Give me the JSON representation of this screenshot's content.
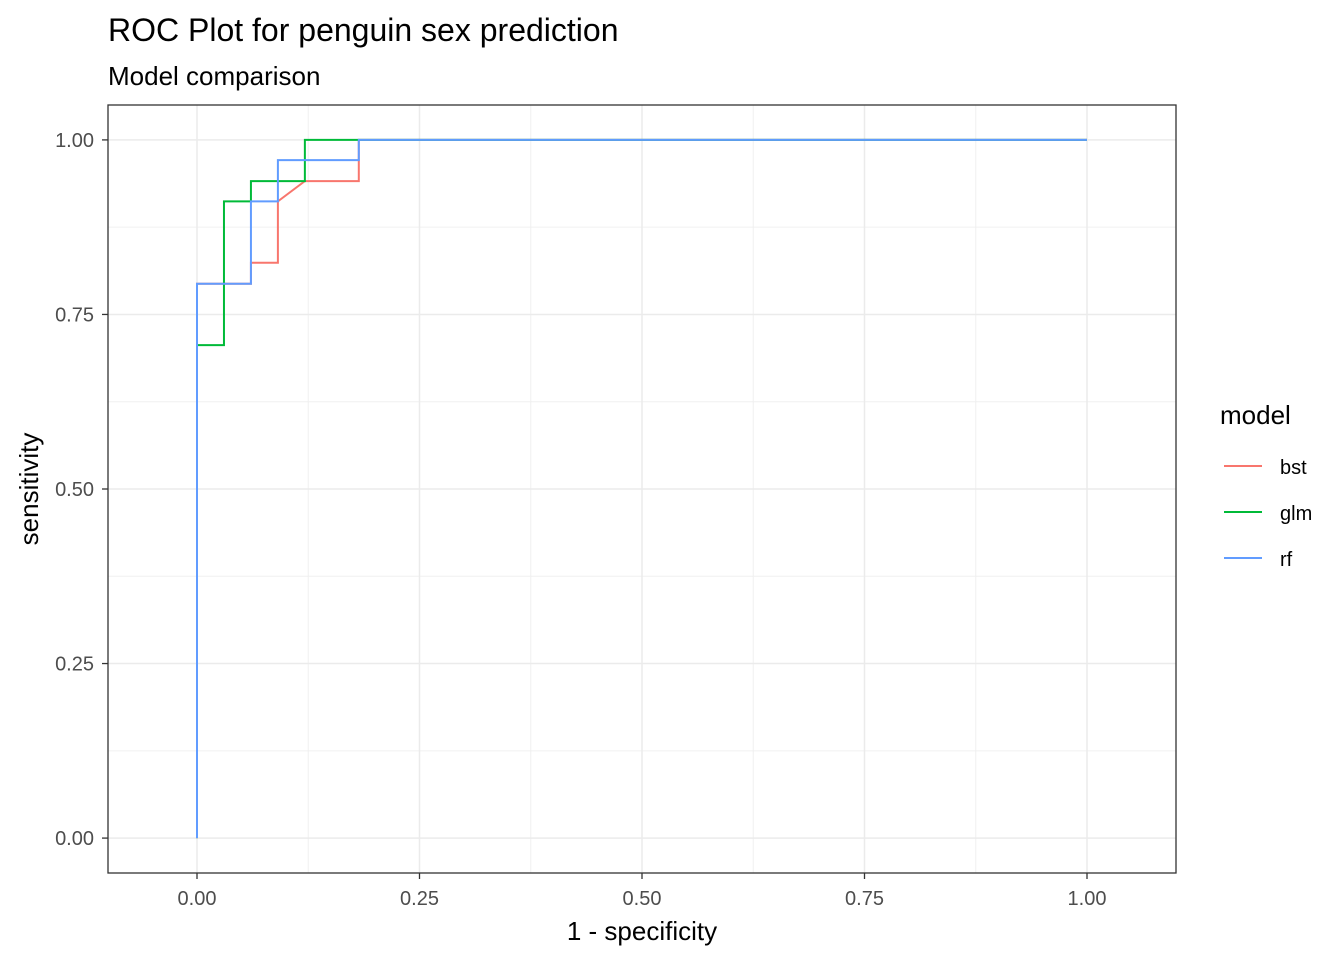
{
  "chart_data": {
    "type": "line",
    "title": "ROC Plot for penguin sex prediction",
    "subtitle": "Model comparison",
    "xlabel": "1 - specificity",
    "ylabel": "sensitivity",
    "xlim": [
      -0.1,
      1.1
    ],
    "ylim": [
      -0.05,
      1.05
    ],
    "x_ticks": [
      0,
      0.25,
      0.5,
      0.75,
      1.0
    ],
    "x_tick_labels": [
      "0.00",
      "0.25",
      "0.50",
      "0.75",
      "1.00"
    ],
    "y_ticks": [
      0,
      0.25,
      0.5,
      0.75,
      1.0
    ],
    "y_tick_labels": [
      "0.00",
      "0.25",
      "0.50",
      "0.75",
      "1.00"
    ],
    "grid": true,
    "legend": {
      "title": "model",
      "position": "right"
    },
    "series": [
      {
        "name": "bst",
        "color": "#F8766D",
        "step": true,
        "x": [
          0,
          0,
          0.0606,
          0.0606,
          0.0909,
          0.0909,
          0.1212,
          0.1818,
          0.1818,
          1.0
        ],
        "y": [
          0,
          0.794,
          0.794,
          0.824,
          0.824,
          0.912,
          0.941,
          0.941,
          1.0,
          1.0
        ]
      },
      {
        "name": "glm",
        "color": "#00BA38",
        "step": true,
        "x": [
          0,
          0,
          0.0303,
          0.0303,
          0.0606,
          0.0606,
          0.1212,
          0.1212,
          1.0
        ],
        "y": [
          0,
          0.706,
          0.706,
          0.912,
          0.912,
          0.941,
          0.941,
          1.0,
          1.0
        ]
      },
      {
        "name": "rf",
        "color": "#619CFF",
        "step": true,
        "x": [
          0,
          0,
          0.0606,
          0.0606,
          0.0909,
          0.0909,
          0.1818,
          0.1818,
          1.0
        ],
        "y": [
          0,
          0.794,
          0.794,
          0.912,
          0.912,
          0.971,
          0.971,
          1.0,
          1.0
        ]
      }
    ]
  }
}
